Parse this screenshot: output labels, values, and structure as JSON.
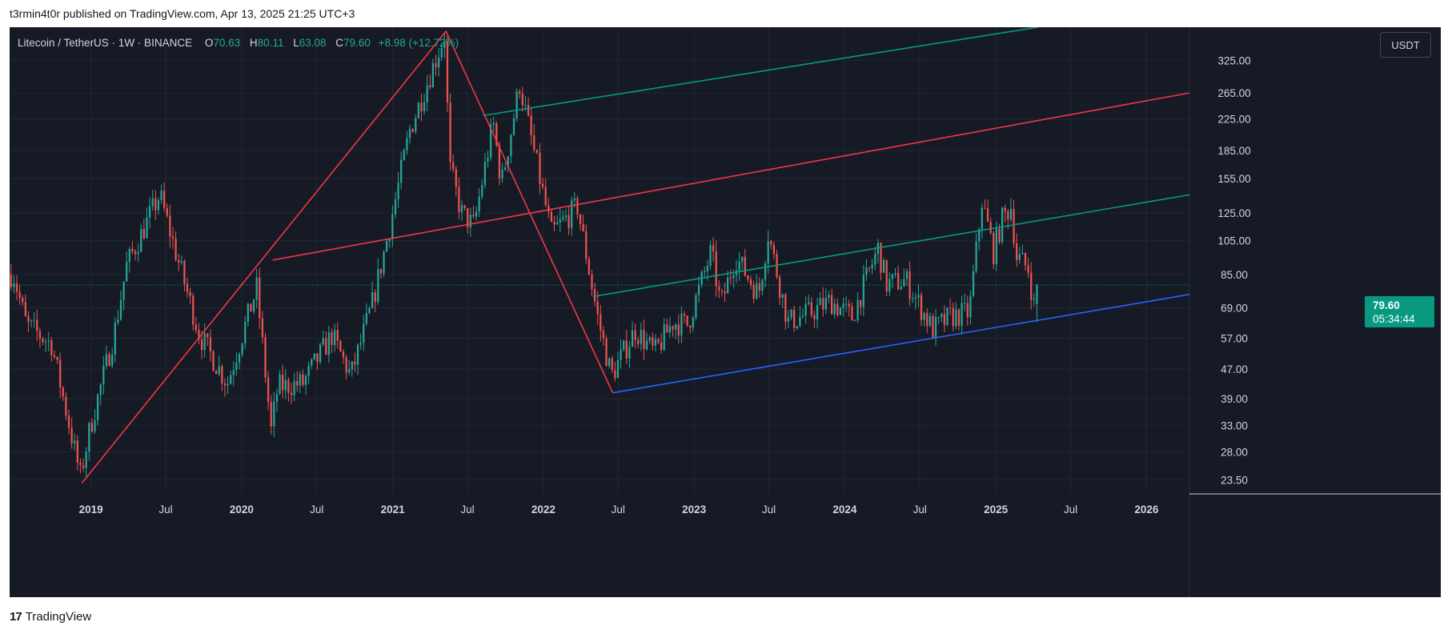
{
  "header": {
    "published_by": "t3rmin4t0r published on TradingView.com, Apr 13, 2025 21:25 UTC+3"
  },
  "legend": {
    "symbol": "Litecoin / TetherUS · 1W · BINANCE",
    "open_label": "O",
    "open": "70.63",
    "high_label": "H",
    "high": "80.11",
    "low_label": "L",
    "low": "63.08",
    "close_label": "C",
    "close": "79.60",
    "change": "+8.98 (+12.72%)"
  },
  "currency_button": "USDT",
  "last_price": {
    "price": "79.60",
    "countdown": "05:34:44"
  },
  "footer": {
    "logo": "17",
    "brand": "TradingView"
  },
  "colors": {
    "background": "#161a25",
    "up": "#26a69a",
    "down": "#ef5350",
    "red_line": "#f23645",
    "teal_line": "#089981",
    "blue_line": "#2962ff",
    "axis_text": "#d1d4dc"
  },
  "chart_data": {
    "type": "candlestick",
    "scale": "log",
    "x_axis_labels": [
      "2019",
      "Jul",
      "2020",
      "Jul",
      "2021",
      "Jul",
      "2022",
      "Jul",
      "2023",
      "Jul",
      "2024",
      "Jul",
      "2025",
      "Jul",
      "2026"
    ],
    "x_axis_dates": [
      "2019-01-01",
      "2019-07-01",
      "2020-01-01",
      "2020-07-01",
      "2021-01-01",
      "2021-07-01",
      "2022-01-01",
      "2022-07-01",
      "2023-01-01",
      "2023-07-01",
      "2024-01-01",
      "2024-07-01",
      "2025-01-01",
      "2025-07-01",
      "2026-01-01"
    ],
    "y_axis_labels": [
      "325.00",
      "265.00",
      "225.00",
      "185.00",
      "155.00",
      "125.00",
      "105.00",
      "85.00",
      "69.00",
      "57.00",
      "47.00",
      "39.00",
      "33.00",
      "28.00",
      "23.50"
    ],
    "ylim": [
      21.5,
      400
    ],
    "xlim": [
      "2018-06-18",
      "2026-04-15"
    ],
    "series": [
      {
        "name": "LTCUSDT",
        "anchors": [
          [
            "2018-07-01",
            85
          ],
          [
            "2018-08-01",
            62
          ],
          [
            "2018-10-01",
            55
          ],
          [
            "2018-12-10",
            24
          ],
          [
            "2019-01-01",
            32
          ],
          [
            "2019-03-01",
            58
          ],
          [
            "2019-04-01",
            90
          ],
          [
            "2019-06-20",
            140
          ],
          [
            "2019-08-01",
            95
          ],
          [
            "2019-09-25",
            58
          ],
          [
            "2019-12-01",
            43
          ],
          [
            "2020-02-10",
            78
          ],
          [
            "2020-03-16",
            32
          ],
          [
            "2020-04-01",
            42
          ],
          [
            "2020-06-01",
            43
          ],
          [
            "2020-08-10",
            58
          ],
          [
            "2020-09-25",
            45
          ],
          [
            "2020-11-15",
            70
          ],
          [
            "2020-12-25",
            110
          ],
          [
            "2021-02-15",
            210
          ],
          [
            "2021-05-10",
            380
          ],
          [
            "2021-05-23",
            165
          ],
          [
            "2021-06-20",
            125
          ],
          [
            "2021-07-20",
            115
          ],
          [
            "2021-09-05",
            220
          ],
          [
            "2021-09-25",
            150
          ],
          [
            "2021-11-08",
            280
          ],
          [
            "2022-01-24",
            110
          ],
          [
            "2022-03-28",
            130
          ],
          [
            "2022-05-16",
            65
          ],
          [
            "2022-06-18",
            45
          ],
          [
            "2022-08-15",
            60
          ],
          [
            "2022-10-01",
            52
          ],
          [
            "2022-11-14",
            63
          ],
          [
            "2022-12-20",
            62
          ],
          [
            "2023-02-15",
            98
          ],
          [
            "2023-03-10",
            70
          ],
          [
            "2023-04-15",
            95
          ],
          [
            "2023-06-10",
            75
          ],
          [
            "2023-07-03",
            110
          ],
          [
            "2023-08-20",
            63
          ],
          [
            "2023-10-15",
            67
          ],
          [
            "2023-12-01",
            72
          ],
          [
            "2024-01-22",
            65
          ],
          [
            "2024-03-25",
            100
          ],
          [
            "2024-04-15",
            80
          ],
          [
            "2024-06-01",
            82
          ],
          [
            "2024-08-05",
            60
          ],
          [
            "2024-09-15",
            65
          ],
          [
            "2024-11-01",
            67
          ],
          [
            "2024-12-02",
            135
          ],
          [
            "2024-12-30",
            98
          ],
          [
            "2025-01-20",
            120
          ],
          [
            "2025-02-10",
            130
          ],
          [
            "2025-02-24",
            95
          ],
          [
            "2025-03-24",
            88
          ],
          [
            "2025-04-07",
            70
          ],
          [
            "2025-04-13",
            79.6
          ]
        ],
        "last": {
          "open": 70.63,
          "high": 80.11,
          "low": 63.08,
          "close": 79.6
        }
      }
    ],
    "annotations": [
      {
        "type": "polyline",
        "color": "#f23645",
        "points": [
          [
            "2018-12-10",
            23
          ],
          [
            "2021-05-10",
            390
          ],
          [
            "2022-06-18",
            40.5
          ]
        ]
      },
      {
        "type": "line",
        "color": "#f23645",
        "from": [
          "2020-03-16",
          93
        ],
        "to": [
          "2026-04-15",
          265
        ]
      },
      {
        "type": "line",
        "color": "#089981",
        "from": [
          "2021-08-08",
          230
        ],
        "to": [
          "2025-04-13",
          400
        ]
      },
      {
        "type": "line",
        "color": "#089981",
        "from": [
          "2022-05-01",
          74
        ],
        "to": [
          "2026-04-15",
          140
        ]
      },
      {
        "type": "line",
        "color": "#2962ff",
        "from": [
          "2022-06-18",
          40.5
        ],
        "to": [
          "2026-04-15",
          75
        ]
      }
    ],
    "last_price_line": 79.6,
    "grid": true
  }
}
